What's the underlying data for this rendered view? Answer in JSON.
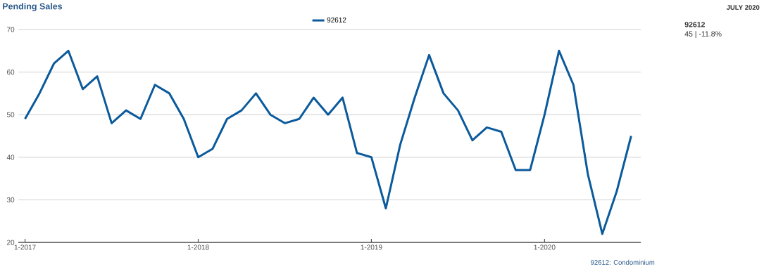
{
  "chart_data": {
    "type": "line",
    "title": "Pending Sales",
    "x": [
      "2017-01",
      "2017-02",
      "2017-03",
      "2017-04",
      "2017-05",
      "2017-06",
      "2017-07",
      "2017-08",
      "2017-09",
      "2017-10",
      "2017-11",
      "2017-12",
      "2018-01",
      "2018-02",
      "2018-03",
      "2018-04",
      "2018-05",
      "2018-06",
      "2018-07",
      "2018-08",
      "2018-09",
      "2018-10",
      "2018-11",
      "2018-12",
      "2019-01",
      "2019-02",
      "2019-03",
      "2019-04",
      "2019-05",
      "2019-06",
      "2019-07",
      "2019-08",
      "2019-09",
      "2019-10",
      "2019-11",
      "2019-12",
      "2020-01",
      "2020-02",
      "2020-03",
      "2020-04",
      "2020-05",
      "2020-06",
      "2020-07"
    ],
    "series": [
      {
        "name": "92612",
        "color": "#0b5a9c",
        "values": [
          49,
          55,
          62,
          65,
          56,
          59,
          48,
          51,
          49,
          57,
          55,
          49,
          40,
          42,
          49,
          51,
          55,
          50,
          48,
          49,
          54,
          50,
          54,
          41,
          40,
          28,
          43,
          54,
          64,
          55,
          51,
          44,
          47,
          46,
          37,
          37,
          50,
          65,
          57,
          36,
          22,
          32,
          45
        ]
      }
    ],
    "xlim": [
      "2016-12-17",
      "2020-07-21"
    ],
    "xticks": [
      {
        "value": "2017-01",
        "label": "1-2017"
      },
      {
        "value": "2018-01",
        "label": "1-2018"
      },
      {
        "value": "2019-01",
        "label": "1-2019"
      },
      {
        "value": "2020-01",
        "label": "1-2020"
      }
    ],
    "ylim": [
      20,
      70
    ],
    "yticks": [
      20,
      30,
      40,
      50,
      60,
      70
    ],
    "grid": "y",
    "legend": "top",
    "marker": "none",
    "line_style": "solid",
    "annotations": [
      "92612: Condominium",
      "JULY 2020",
      "**92612**",
      "45 | -11.8%"
    ]
  }
}
